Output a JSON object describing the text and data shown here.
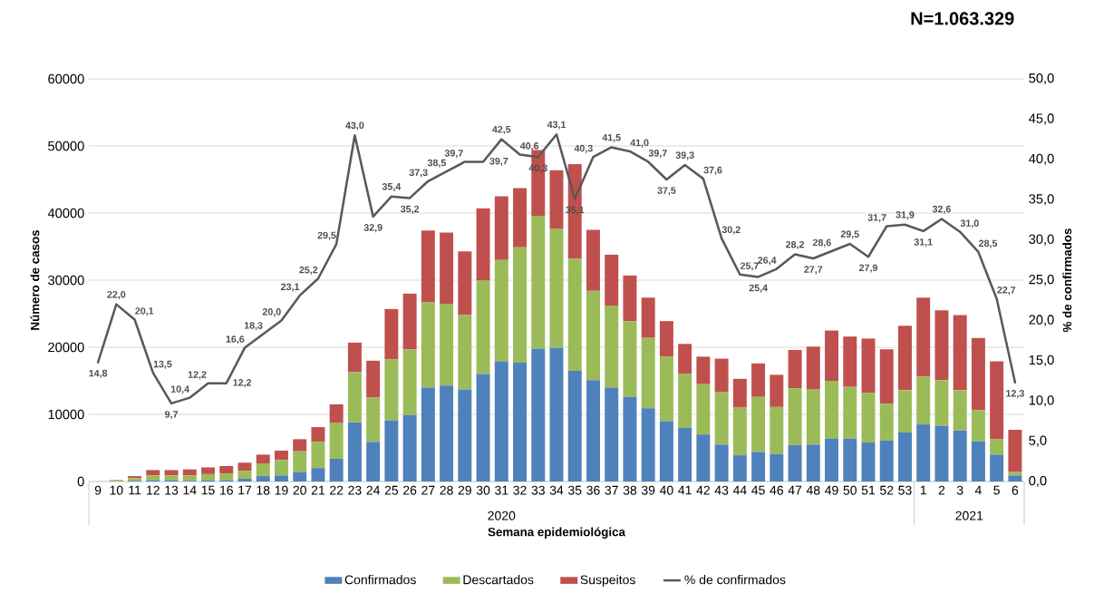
{
  "chart_data": {
    "type": "bar",
    "title": "N=1.063.329",
    "xlabel": "Semana epidemiológica",
    "ylabel": "Número de casos",
    "y2label": "% de confirmados",
    "annotations": [
      "2020",
      "2021"
    ],
    "categories": [
      "9",
      "10",
      "11",
      "12",
      "13",
      "14",
      "15",
      "16",
      "17",
      "18",
      "19",
      "20",
      "21",
      "22",
      "23",
      "24",
      "25",
      "26",
      "27",
      "28",
      "29",
      "30",
      "31",
      "32",
      "33",
      "34",
      "35",
      "36",
      "37",
      "38",
      "39",
      "40",
      "41",
      "42",
      "43",
      "44",
      "45",
      "46",
      "47",
      "48",
      "49",
      "50",
      "51",
      "52",
      "53",
      "1",
      "2",
      "3",
      "4",
      "5",
      "6"
    ],
    "stacked": true,
    "series": [
      {
        "name": "Confirmados",
        "color": "#4f81bd",
        "values": [
          0,
          0,
          100,
          200,
          200,
          100,
          200,
          200,
          400,
          800,
          900,
          1400,
          2000,
          3400,
          8800,
          5900,
          9100,
          9900,
          14000,
          14300,
          13700,
          16000,
          17900,
          17700,
          19800,
          19900,
          16500,
          15100,
          14000,
          12600,
          10900,
          9000,
          8000,
          7000,
          5500,
          3900,
          4400,
          4100,
          5400,
          5500,
          6400,
          6400,
          5800,
          6100,
          7300,
          8500,
          8300,
          7600,
          6000,
          4000,
          900
        ]
      },
      {
        "name": "Descartados",
        "color": "#9bbb59",
        "values": [
          0,
          100,
          400,
          700,
          700,
          800,
          900,
          1000,
          1200,
          1900,
          2300,
          3100,
          3900,
          5300,
          7500,
          6600,
          9100,
          9800,
          12700,
          12200,
          11100,
          14000,
          15100,
          17200,
          19800,
          17800,
          16700,
          13300,
          12200,
          11300,
          10500,
          9600,
          8000,
          7500,
          7800,
          7100,
          8200,
          7000,
          8500,
          8200,
          8600,
          7700,
          7400,
          5500,
          6300,
          7100,
          6800,
          6000,
          4600,
          2300,
          500
        ]
      },
      {
        "name": "Suspeitos",
        "color": "#c0504d",
        "values": [
          0,
          100,
          300,
          800,
          800,
          900,
          1000,
          1100,
          1200,
          1300,
          1400,
          1800,
          2200,
          2800,
          4400,
          5500,
          7500,
          8300,
          10700,
          10600,
          9500,
          10700,
          9500,
          8800,
          9800,
          8700,
          14100,
          9100,
          7600,
          6800,
          6000,
          5300,
          4500,
          4100,
          5000,
          4300,
          5000,
          4800,
          5700,
          6400,
          7500,
          7500,
          8100,
          8100,
          9600,
          11800,
          10400,
          11200,
          10800,
          11600,
          6300
        ]
      },
      {
        "name": "% de confirmados",
        "type": "line",
        "axis": "y2",
        "color": "#595959",
        "marker": "none",
        "line_style": "solid",
        "values": [
          14.8,
          22.0,
          20.1,
          13.5,
          9.7,
          10.4,
          12.2,
          12.2,
          16.6,
          18.3,
          20.0,
          23.1,
          25.2,
          29.5,
          43.0,
          32.9,
          35.4,
          35.2,
          37.3,
          38.5,
          39.7,
          39.7,
          42.5,
          40.6,
          40.3,
          43.1,
          35.1,
          40.3,
          41.5,
          41.0,
          39.7,
          37.5,
          39.3,
          37.6,
          30.2,
          25.7,
          25.4,
          26.4,
          28.2,
          27.7,
          28.6,
          29.5,
          27.9,
          31.7,
          31.9,
          31.1,
          32.6,
          31.0,
          28.5,
          22.7,
          12.3
        ],
        "value_labels": [
          "14,8",
          "22,0",
          "20,1",
          "13,5",
          "9,7",
          "10,4",
          "12,2",
          "12,2",
          "16,6",
          "18,3",
          "20,0",
          "23,1",
          "25,2",
          "29,5",
          "43,0",
          "32,9",
          "35,4",
          "35,2",
          "37,3",
          "38,5",
          "39,7",
          "39,7",
          "42,5",
          "40,6",
          "40,3",
          "43,1",
          "35,1",
          "40,3",
          "41,5",
          "41,0",
          "39,7",
          "37,5",
          "39,3",
          "37,6",
          "30,2",
          "25,7",
          "25,4",
          "26,4",
          "28,2",
          "27,7",
          "28,6",
          "29,5",
          "27,9",
          "31,7",
          "31,9",
          "31,1",
          "32,6",
          "31,0",
          "28,5",
          "22,7",
          "12,3"
        ]
      }
    ],
    "ylim": [
      0,
      60000
    ],
    "yticks": [
      0,
      10000,
      20000,
      30000,
      40000,
      50000,
      60000
    ],
    "y2lim": [
      0,
      50
    ],
    "y2ticks": [
      {
        "value": 0,
        "label": "0,0"
      },
      {
        "value": 5,
        "label": "5,0"
      },
      {
        "value": 10,
        "label": "10,0"
      },
      {
        "value": 15,
        "label": "15,0"
      },
      {
        "value": 20,
        "label": "20,0"
      },
      {
        "value": 25,
        "label": "25,0"
      },
      {
        "value": 30,
        "label": "30,0"
      },
      {
        "value": 35,
        "label": "35,0"
      },
      {
        "value": 40,
        "label": "40,0"
      },
      {
        "value": 45,
        "label": "45,0"
      },
      {
        "value": 50,
        "label": "50,0"
      }
    ],
    "grid": "y",
    "legend": "bottom"
  }
}
